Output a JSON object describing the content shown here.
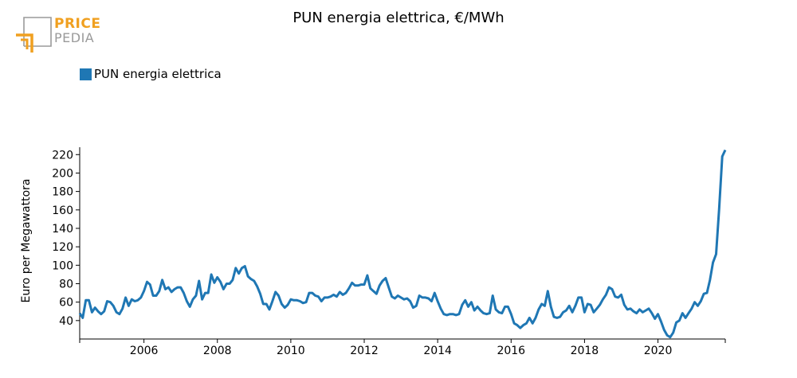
{
  "brand": {
    "line1": "PRICE",
    "line2": "PEDIA",
    "accent_color": "#f0a020",
    "gray_color": "#9a9a9a"
  },
  "chart_data": {
    "type": "line",
    "title": "PUN energia elettrica, €/MWh",
    "ylabel": "Euro per Megawattora",
    "xlabel": "",
    "x_start": "2004-04",
    "x_end": "2021-11",
    "ylim": [
      20,
      228
    ],
    "yticks": [
      40,
      60,
      80,
      100,
      120,
      140,
      160,
      180,
      200,
      220
    ],
    "xticks": [
      "2006",
      "2008",
      "2010",
      "2012",
      "2014",
      "2016",
      "2018",
      "2020"
    ],
    "grid": false,
    "legend_position": "top-left",
    "series": [
      {
        "name": "PUN energia elettrica",
        "color": "#1f77b4",
        "x": [
          "2004-04",
          "2004-05",
          "2004-06",
          "2004-07",
          "2004-08",
          "2004-09",
          "2004-10",
          "2004-11",
          "2004-12",
          "2005-01",
          "2005-02",
          "2005-03",
          "2005-04",
          "2005-05",
          "2005-06",
          "2005-07",
          "2005-08",
          "2005-09",
          "2005-10",
          "2005-11",
          "2005-12",
          "2006-01",
          "2006-02",
          "2006-03",
          "2006-04",
          "2006-05",
          "2006-06",
          "2006-07",
          "2006-08",
          "2006-09",
          "2006-10",
          "2006-11",
          "2006-12",
          "2007-01",
          "2007-02",
          "2007-03",
          "2007-04",
          "2007-05",
          "2007-06",
          "2007-07",
          "2007-08",
          "2007-09",
          "2007-10",
          "2007-11",
          "2007-12",
          "2008-01",
          "2008-02",
          "2008-03",
          "2008-04",
          "2008-05",
          "2008-06",
          "2008-07",
          "2008-08",
          "2008-09",
          "2008-10",
          "2008-11",
          "2008-12",
          "2009-01",
          "2009-02",
          "2009-03",
          "2009-04",
          "2009-05",
          "2009-06",
          "2009-07",
          "2009-08",
          "2009-09",
          "2009-10",
          "2009-11",
          "2009-12",
          "2010-01",
          "2010-02",
          "2010-03",
          "2010-04",
          "2010-05",
          "2010-06",
          "2010-07",
          "2010-08",
          "2010-09",
          "2010-10",
          "2010-11",
          "2010-12",
          "2011-01",
          "2011-02",
          "2011-03",
          "2011-04",
          "2011-05",
          "2011-06",
          "2011-07",
          "2011-08",
          "2011-09",
          "2011-10",
          "2011-11",
          "2011-12",
          "2012-01",
          "2012-02",
          "2012-03",
          "2012-04",
          "2012-05",
          "2012-06",
          "2012-07",
          "2012-08",
          "2012-09",
          "2012-10",
          "2012-11",
          "2012-12",
          "2013-01",
          "2013-02",
          "2013-03",
          "2013-04",
          "2013-05",
          "2013-06",
          "2013-07",
          "2013-08",
          "2013-09",
          "2013-10",
          "2013-11",
          "2013-12",
          "2014-01",
          "2014-02",
          "2014-03",
          "2014-04",
          "2014-05",
          "2014-06",
          "2014-07",
          "2014-08",
          "2014-09",
          "2014-10",
          "2014-11",
          "2014-12",
          "2015-01",
          "2015-02",
          "2015-03",
          "2015-04",
          "2015-05",
          "2015-06",
          "2015-07",
          "2015-08",
          "2015-09",
          "2015-10",
          "2015-11",
          "2015-12",
          "2016-01",
          "2016-02",
          "2016-03",
          "2016-04",
          "2016-05",
          "2016-06",
          "2016-07",
          "2016-08",
          "2016-09",
          "2016-10",
          "2016-11",
          "2016-12",
          "2017-01",
          "2017-02",
          "2017-03",
          "2017-04",
          "2017-05",
          "2017-06",
          "2017-07",
          "2017-08",
          "2017-09",
          "2017-10",
          "2017-11",
          "2017-12",
          "2018-01",
          "2018-02",
          "2018-03",
          "2018-04",
          "2018-05",
          "2018-06",
          "2018-07",
          "2018-08",
          "2018-09",
          "2018-10",
          "2018-11",
          "2018-12",
          "2019-01",
          "2019-02",
          "2019-03",
          "2019-04",
          "2019-05",
          "2019-06",
          "2019-07",
          "2019-08",
          "2019-09",
          "2019-10",
          "2019-11",
          "2019-12",
          "2020-01",
          "2020-02",
          "2020-03",
          "2020-04",
          "2020-05",
          "2020-06",
          "2020-07",
          "2020-08",
          "2020-09",
          "2020-10",
          "2020-11",
          "2020-12",
          "2021-01",
          "2021-02",
          "2021-03",
          "2021-04",
          "2021-05",
          "2021-06",
          "2021-07",
          "2021-08",
          "2021-09",
          "2021-10",
          "2021-11"
        ],
        "values": [
          48,
          43,
          62,
          62,
          49,
          54,
          50,
          47,
          50,
          61,
          60,
          56,
          49,
          47,
          53,
          65,
          56,
          63,
          61,
          62,
          65,
          72,
          82,
          79,
          67,
          67,
          72,
          84,
          74,
          76,
          71,
          74,
          76,
          76,
          70,
          61,
          55,
          63,
          67,
          83,
          63,
          70,
          70,
          90,
          81,
          87,
          82,
          74,
          80,
          80,
          84,
          97,
          91,
          97,
          99,
          88,
          85,
          83,
          77,
          69,
          58,
          58,
          52,
          61,
          71,
          67,
          58,
          54,
          57,
          63,
          62,
          62,
          61,
          59,
          60,
          70,
          70,
          67,
          66,
          61,
          65,
          65,
          66,
          68,
          66,
          71,
          68,
          70,
          75,
          81,
          78,
          78,
          79,
          79,
          89,
          75,
          72,
          69,
          78,
          83,
          86,
          76,
          66,
          64,
          67,
          65,
          63,
          64,
          61,
          54,
          56,
          67,
          65,
          65,
          64,
          61,
          70,
          61,
          53,
          47,
          46,
          47,
          47,
          46,
          47,
          57,
          62,
          55,
          60,
          51,
          55,
          51,
          48,
          47,
          48,
          67,
          52,
          49,
          48,
          55,
          55,
          47,
          37,
          35,
          32,
          35,
          37,
          43,
          37,
          43,
          52,
          58,
          56,
          72,
          55,
          44,
          43,
          44,
          49,
          51,
          56,
          49,
          56,
          65,
          65,
          49,
          58,
          57,
          49,
          53,
          57,
          63,
          68,
          76,
          74,
          66,
          65,
          68,
          57,
          52,
          53,
          50,
          48,
          52,
          49,
          51,
          53,
          48,
          42,
          47,
          39,
          30,
          24,
          22,
          27,
          38,
          40,
          48,
          43,
          48,
          53,
          60,
          56,
          61,
          69,
          70,
          84,
          103,
          112,
          161,
          218,
          225
        ]
      }
    ]
  }
}
